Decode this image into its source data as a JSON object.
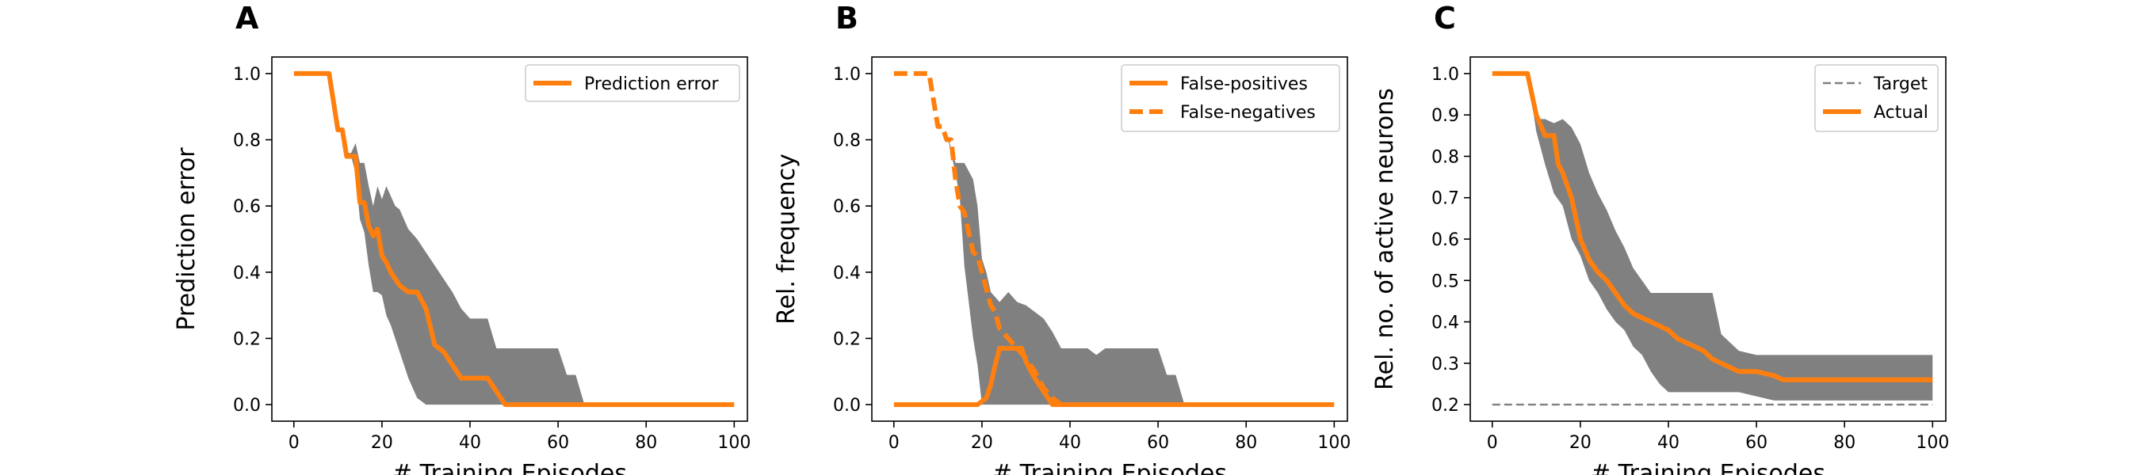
{
  "colors": {
    "line": "#ff7f0e",
    "band": "#808080",
    "target": "#808080"
  },
  "chart_data": [
    {
      "type": "line",
      "panel_label": "A",
      "xlabel": "# Training Episodes",
      "ylabel": "Prediction error",
      "xlim": [
        -5,
        103
      ],
      "ylim": [
        -0.05,
        1.05
      ],
      "xticks": [
        0,
        20,
        40,
        60,
        80,
        100
      ],
      "yticks": [
        0.0,
        0.2,
        0.4,
        0.6,
        0.8,
        1.0
      ],
      "ytick_labels": [
        "0.0",
        "0.2",
        "0.4",
        "0.6",
        "0.8",
        "1.0"
      ],
      "legend": "top-right",
      "band": {
        "x": [
          0,
          8,
          10,
          11,
          12,
          13,
          14,
          15,
          16,
          17,
          18,
          19,
          20,
          21,
          22,
          23,
          24,
          26,
          28,
          30,
          32,
          34,
          36,
          38,
          40,
          42,
          44,
          46,
          48,
          50,
          60,
          62,
          64,
          66,
          100
        ],
        "lower": [
          1.0,
          1.0,
          0.83,
          0.83,
          0.75,
          0.75,
          0.7,
          0.56,
          0.52,
          0.42,
          0.34,
          0.34,
          0.33,
          0.27,
          0.24,
          0.2,
          0.16,
          0.08,
          0.02,
          0.0,
          0.0,
          0.0,
          0.0,
          0.0,
          0.0,
          0.0,
          0.0,
          0.0,
          0.0,
          0.0,
          0.0,
          0.0,
          0.0,
          0.0,
          0.0
        ],
        "upper": [
          1.0,
          1.0,
          0.83,
          0.83,
          0.76,
          0.76,
          0.79,
          0.73,
          0.73,
          0.66,
          0.6,
          0.66,
          0.62,
          0.66,
          0.63,
          0.6,
          0.59,
          0.53,
          0.5,
          0.46,
          0.42,
          0.38,
          0.34,
          0.29,
          0.26,
          0.26,
          0.26,
          0.17,
          0.17,
          0.17,
          0.17,
          0.09,
          0.09,
          0.0,
          0.0
        ]
      },
      "series": [
        {
          "name": "Prediction error",
          "style": "solid",
          "x": [
            0,
            8,
            10,
            11,
            12,
            13,
            14,
            15,
            16,
            17,
            18,
            19,
            20,
            21,
            22,
            24,
            26,
            28,
            30,
            32,
            34,
            36,
            38,
            40,
            42,
            44,
            46,
            48,
            100
          ],
          "y": [
            1.0,
            1.0,
            0.83,
            0.83,
            0.75,
            0.75,
            0.75,
            0.61,
            0.61,
            0.54,
            0.51,
            0.53,
            0.45,
            0.43,
            0.4,
            0.36,
            0.34,
            0.34,
            0.29,
            0.18,
            0.16,
            0.12,
            0.08,
            0.08,
            0.08,
            0.08,
            0.04,
            0.0,
            0.0
          ]
        }
      ]
    },
    {
      "type": "line",
      "panel_label": "B",
      "xlabel": "# Training Episodes",
      "ylabel": "Rel. frequency",
      "xlim": [
        -5,
        103
      ],
      "ylim": [
        -0.05,
        1.05
      ],
      "xticks": [
        0,
        20,
        40,
        60,
        80,
        100
      ],
      "yticks": [
        0.0,
        0.2,
        0.4,
        0.6,
        0.8,
        1.0
      ],
      "ytick_labels": [
        "0.0",
        "0.2",
        "0.4",
        "0.6",
        "0.8",
        "1.0"
      ],
      "legend": "top-right",
      "band": {
        "x": [
          0,
          8,
          10,
          12,
          14,
          15,
          16,
          18,
          19,
          20,
          21,
          22,
          24,
          26,
          28,
          30,
          32,
          34,
          36,
          38,
          40,
          44,
          46,
          48,
          50,
          60,
          62,
          64,
          66,
          100
        ],
        "lower": [
          1.0,
          1.0,
          0.84,
          0.82,
          0.7,
          0.62,
          0.42,
          0.2,
          0.12,
          0.0,
          0.0,
          0.0,
          0.0,
          0.0,
          0.0,
          0.0,
          0.0,
          0.0,
          0.0,
          0.0,
          0.0,
          0.0,
          0.0,
          0.0,
          0.0,
          0.0,
          0.0,
          0.0,
          0.0,
          0.0
        ],
        "upper": [
          1.0,
          1.0,
          0.84,
          0.82,
          0.73,
          0.73,
          0.73,
          0.68,
          0.6,
          0.44,
          0.4,
          0.34,
          0.31,
          0.34,
          0.31,
          0.3,
          0.28,
          0.26,
          0.22,
          0.17,
          0.17,
          0.17,
          0.15,
          0.17,
          0.17,
          0.17,
          0.09,
          0.09,
          0.0,
          0.0
        ]
      },
      "series": [
        {
          "name": "False-positives",
          "style": "solid",
          "x": [
            0,
            19,
            20,
            21,
            22,
            23,
            24,
            26,
            28,
            29,
            30,
            32,
            34,
            36,
            38,
            100
          ],
          "y": [
            0.0,
            0.0,
            0.01,
            0.02,
            0.06,
            0.12,
            0.17,
            0.17,
            0.17,
            0.17,
            0.13,
            0.08,
            0.04,
            0.0,
            0.0,
            0.0
          ]
        },
        {
          "name": "False-negatives",
          "style": "dashed",
          "x": [
            0,
            8,
            10,
            11,
            12,
            13,
            14,
            15,
            16,
            17,
            18,
            19,
            20,
            21,
            22,
            23,
            24,
            26,
            28,
            30,
            32,
            34,
            36,
            38
          ],
          "y": [
            1.0,
            1.0,
            0.84,
            0.84,
            0.8,
            0.8,
            0.68,
            0.6,
            0.58,
            0.52,
            0.46,
            0.45,
            0.4,
            0.35,
            0.3,
            0.28,
            0.23,
            0.2,
            0.17,
            0.14,
            0.1,
            0.05,
            0.02,
            0.0
          ]
        }
      ]
    },
    {
      "type": "line",
      "panel_label": "C",
      "xlabel": "# Training Episodes",
      "ylabel": "Rel. no. of active neurons",
      "xlim": [
        -5,
        103
      ],
      "ylim": [
        0.16,
        1.04
      ],
      "xticks": [
        0,
        20,
        40,
        60,
        80,
        100
      ],
      "yticks": [
        0.2,
        0.3,
        0.4,
        0.5,
        0.6,
        0.7,
        0.8,
        0.9,
        1.0
      ],
      "ytick_labels": [
        "0.2",
        "0.3",
        "0.4",
        "0.5",
        "0.6",
        "0.7",
        "0.8",
        "0.9",
        "1.0"
      ],
      "legend": "top-right",
      "band": {
        "x": [
          0,
          8,
          10,
          12,
          14,
          16,
          18,
          20,
          22,
          24,
          26,
          28,
          30,
          32,
          34,
          36,
          38,
          40,
          42,
          44,
          46,
          48,
          50,
          52,
          56,
          60,
          64,
          66,
          100
        ],
        "lower": [
          1.0,
          1.0,
          0.86,
          0.78,
          0.71,
          0.68,
          0.6,
          0.56,
          0.5,
          0.47,
          0.43,
          0.4,
          0.38,
          0.34,
          0.32,
          0.28,
          0.25,
          0.23,
          0.23,
          0.23,
          0.23,
          0.23,
          0.23,
          0.23,
          0.23,
          0.22,
          0.21,
          0.21,
          0.21
        ],
        "upper": [
          1.0,
          1.0,
          0.89,
          0.89,
          0.88,
          0.89,
          0.87,
          0.83,
          0.76,
          0.71,
          0.67,
          0.62,
          0.58,
          0.53,
          0.5,
          0.47,
          0.47,
          0.47,
          0.47,
          0.47,
          0.47,
          0.47,
          0.47,
          0.37,
          0.33,
          0.32,
          0.32,
          0.32,
          0.32
        ]
      },
      "series": [
        {
          "name": "Target",
          "style": "dashed-thin",
          "x": [
            0,
            100
          ],
          "y": [
            0.2,
            0.2
          ]
        },
        {
          "name": "Actual",
          "style": "solid",
          "x": [
            0,
            8,
            10,
            12,
            14,
            15,
            16,
            18,
            20,
            22,
            24,
            26,
            28,
            30,
            32,
            34,
            36,
            38,
            40,
            42,
            44,
            46,
            48,
            50,
            52,
            54,
            56,
            60,
            64,
            66,
            100
          ],
          "y": [
            1.0,
            1.0,
            0.9,
            0.85,
            0.85,
            0.78,
            0.76,
            0.7,
            0.6,
            0.55,
            0.52,
            0.5,
            0.47,
            0.44,
            0.42,
            0.41,
            0.4,
            0.39,
            0.38,
            0.36,
            0.35,
            0.34,
            0.33,
            0.31,
            0.3,
            0.29,
            0.28,
            0.28,
            0.27,
            0.26,
            0.26
          ]
        }
      ]
    }
  ]
}
